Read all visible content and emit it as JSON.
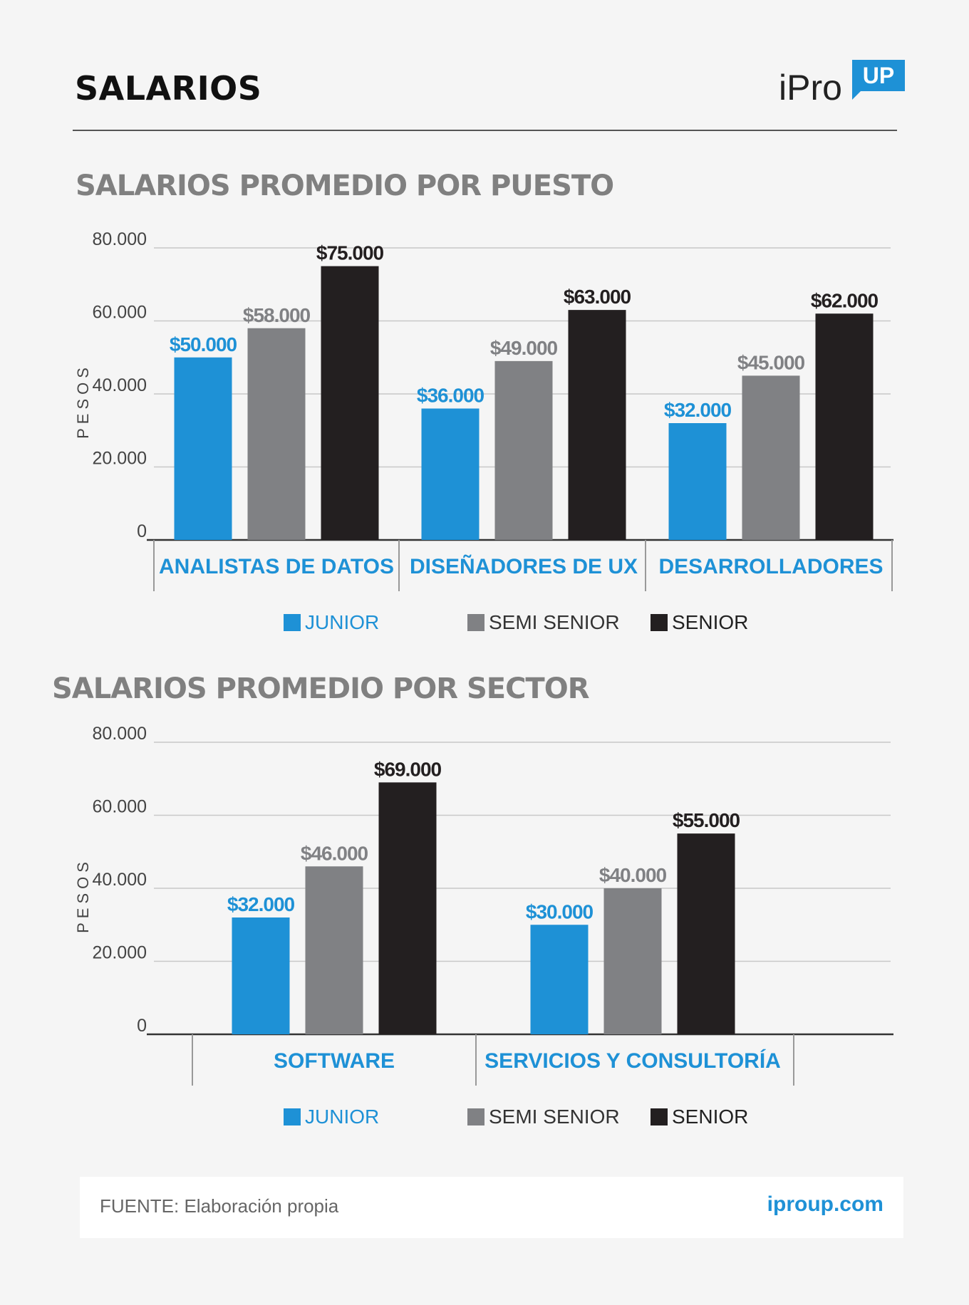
{
  "header": {
    "title": "SALARIOS",
    "logo_text": "iPro",
    "logo_badge": "UP"
  },
  "colors": {
    "junior": "#1e91d6",
    "semi_senior": "#808184",
    "senior": "#231f20",
    "axis_text": "#444444",
    "label_blue": "#1e91d6"
  },
  "legend": {
    "junior": "JUNIOR",
    "semi_senior": "SEMI SENIOR",
    "senior": "SENIOR"
  },
  "footer": {
    "source": "FUENTE: Elaboración propia",
    "url": "iproup.com"
  },
  "chart_data": [
    {
      "type": "bar",
      "title": "SALARIOS PROMEDIO POR PUESTO",
      "ylabel": "PESOS",
      "ylim": [
        0,
        80000
      ],
      "yticks": [
        "0",
        "20.000",
        "40.000",
        "60.000",
        "80.000"
      ],
      "categories": [
        "ANALISTAS DE DATOS",
        "DISEÑADORES DE UX",
        "DESARROLLADORES"
      ],
      "series": [
        {
          "name": "JUNIOR",
          "values": [
            50000,
            36000,
            32000
          ],
          "labels": [
            "$50.000",
            "$36.000",
            "$32.000"
          ]
        },
        {
          "name": "SEMI SENIOR",
          "values": [
            58000,
            49000,
            45000
          ],
          "labels": [
            "$58.000",
            "$49.000",
            "$45.000"
          ]
        },
        {
          "name": "SENIOR",
          "values": [
            75000,
            63000,
            62000
          ],
          "labels": [
            "$75.000",
            "$63.000",
            "$62.000"
          ]
        }
      ],
      "grid": true,
      "legend_position": "bottom"
    },
    {
      "type": "bar",
      "title": "SALARIOS PROMEDIO POR SECTOR",
      "ylabel": "PESOS",
      "ylim": [
        0,
        80000
      ],
      "yticks": [
        "0",
        "20.000",
        "40.000",
        "60.000",
        "80.000"
      ],
      "categories": [
        "SOFTWARE",
        "SERVICIOS Y CONSULTORÍA"
      ],
      "series": [
        {
          "name": "JUNIOR",
          "values": [
            32000,
            30000
          ],
          "labels": [
            "$32.000",
            "$30.000"
          ]
        },
        {
          "name": "SEMI SENIOR",
          "values": [
            46000,
            40000
          ],
          "labels": [
            "$46.000",
            "$40.000"
          ]
        },
        {
          "name": "SENIOR",
          "values": [
            69000,
            55000
          ],
          "labels": [
            "$69.000",
            "$55.000"
          ]
        }
      ],
      "grid": true,
      "legend_position": "bottom"
    }
  ]
}
